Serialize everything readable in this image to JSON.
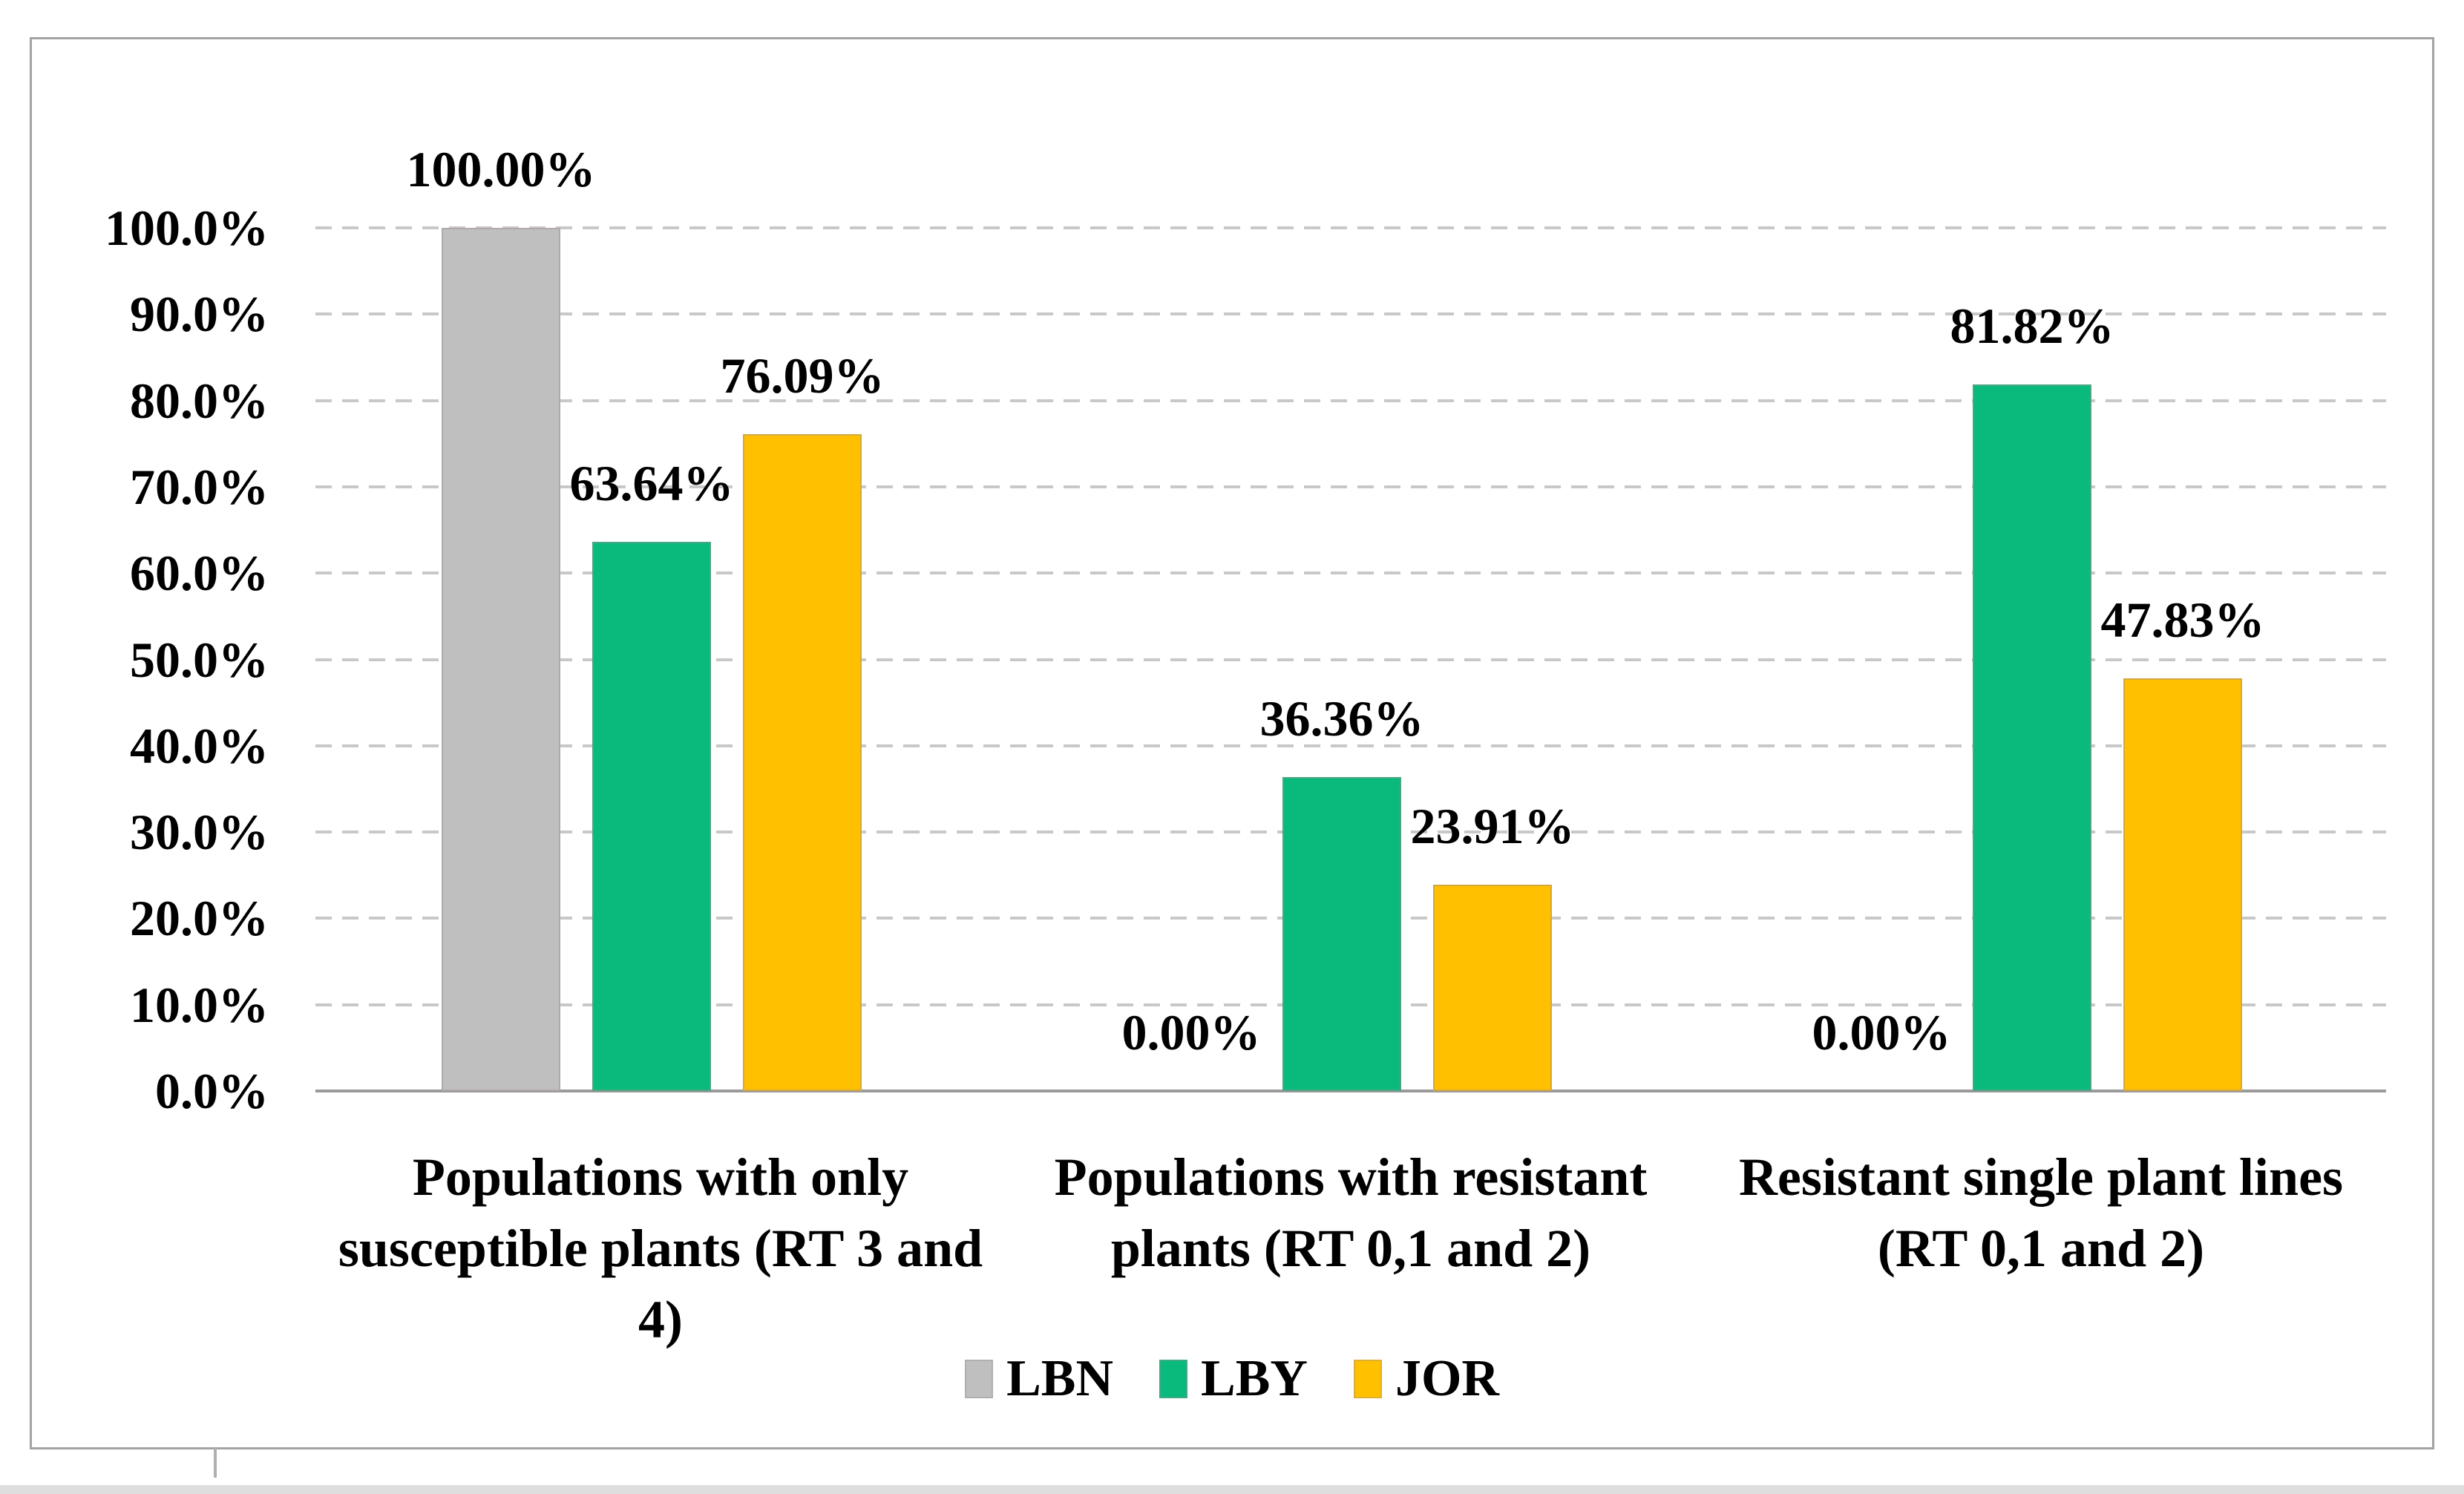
{
  "figure": {
    "background_color": "#ffffff",
    "frame_border_color": "#a3a3a3"
  },
  "chart_data": {
    "type": "bar",
    "title": "",
    "xlabel": "",
    "ylabel": "",
    "ylim": [
      0,
      100
    ],
    "grid": "horizontal-dashed",
    "legend_position": "bottom-center",
    "axis_color": "#9a9a9a",
    "gridline_color": "#c8c8c8",
    "categories": [
      "Populations with only susceptible plants (RT 3 and 4)",
      "Populations with resistant plants (RT 0,1 and 2)",
      "Resistant single plant lines (RT 0,1 and 2)"
    ],
    "series": [
      {
        "name": "LBN",
        "color": "#BFBFBF",
        "values": [
          100.0,
          0.0,
          0.0
        ],
        "value_labels": [
          "100.00%",
          "0.00%",
          "0.00%"
        ]
      },
      {
        "name": "LBY",
        "color": "#0ABA7D",
        "values": [
          63.64,
          36.36,
          81.82
        ],
        "value_labels": [
          "63.64%",
          "36.36%",
          "81.82%"
        ]
      },
      {
        "name": "JOR",
        "color": "#FFC000",
        "values": [
          76.09,
          23.91,
          47.83
        ],
        "value_labels": [
          "76.09%",
          "23.91%",
          "47.83%"
        ]
      }
    ],
    "y_tick_labels": [
      "100.0%",
      "90.0%",
      "80.0%",
      "70.0%",
      "60.0%",
      "50.0%",
      "40.0%",
      "30.0%",
      "20.0%",
      "10.0%",
      "0.0%"
    ]
  }
}
